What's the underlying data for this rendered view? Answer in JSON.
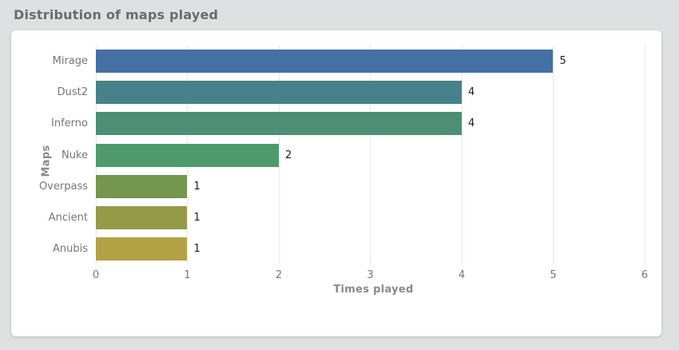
{
  "page": {
    "background": "#dfe0e1",
    "card_background": "#ffffff"
  },
  "header": {
    "title": "Distribution of maps played"
  },
  "chart_data": {
    "type": "bar",
    "orientation": "horizontal",
    "title": "Distribution of maps played",
    "xlabel": "Times played",
    "ylabel": "Maps",
    "categories": [
      "Mirage",
      "Dust2",
      "Inferno",
      "Nuke",
      "Overpass",
      "Ancient",
      "Anubis"
    ],
    "values": [
      5,
      4,
      4,
      2,
      1,
      1,
      1
    ],
    "value_labels": [
      "5",
      "4",
      "4",
      "2",
      "1",
      "1",
      "1"
    ],
    "bar_colors": [
      "#4470a4",
      "#47818a",
      "#4d8f74",
      "#4f9a6c",
      "#74964e",
      "#949a48",
      "#b3a245"
    ],
    "xticks": [
      "0",
      "1",
      "2",
      "3",
      "4",
      "5",
      "6"
    ],
    "xlim": [
      0,
      6.07
    ],
    "grid": true,
    "gridline_color": "#e8e8e8",
    "tick_color": "#767676",
    "value_label_color": "#1c1c1c"
  }
}
